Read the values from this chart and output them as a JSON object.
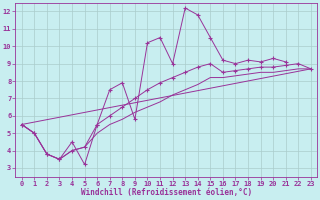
{
  "xlabel": "Windchill (Refroidissement éolien,°C)",
  "bg_color": "#c8eef0",
  "grid_color": "#aacccc",
  "line_color": "#993399",
  "xlim": [
    -0.5,
    23.5
  ],
  "ylim": [
    2.5,
    12.5
  ],
  "xticks": [
    0,
    1,
    2,
    3,
    4,
    5,
    6,
    7,
    8,
    9,
    10,
    11,
    12,
    13,
    14,
    15,
    16,
    17,
    18,
    19,
    20,
    21,
    22,
    23
  ],
  "yticks": [
    3,
    4,
    5,
    6,
    7,
    8,
    9,
    10,
    11,
    12
  ],
  "series1_x": [
    0,
    1,
    2,
    3,
    4,
    5,
    6,
    7,
    8,
    9,
    10,
    11,
    12,
    13,
    14,
    15,
    16,
    17,
    18,
    19,
    20,
    21
  ],
  "series1_y": [
    5.5,
    5.0,
    3.8,
    3.5,
    4.5,
    3.2,
    5.5,
    7.5,
    7.9,
    5.8,
    10.2,
    10.5,
    9.0,
    12.2,
    11.8,
    10.5,
    9.2,
    9.0,
    9.2,
    9.1,
    9.3,
    9.1
  ],
  "series2_x": [
    0,
    1,
    2,
    3,
    4,
    5,
    6,
    7,
    8,
    9,
    10,
    11,
    12,
    13,
    14,
    15,
    16,
    17,
    18,
    19,
    20,
    21,
    22,
    23
  ],
  "series2_y": [
    5.5,
    5.0,
    3.8,
    3.5,
    4.0,
    4.2,
    5.5,
    6.0,
    6.5,
    7.0,
    7.5,
    7.9,
    8.2,
    8.5,
    8.8,
    9.0,
    8.5,
    8.6,
    8.7,
    8.8,
    8.8,
    8.9,
    9.0,
    8.7
  ],
  "series3_x": [
    0,
    23
  ],
  "series3_y": [
    5.5,
    8.7
  ],
  "series4_x": [
    0,
    1,
    2,
    3,
    4,
    5,
    6,
    7,
    8,
    9,
    10,
    11,
    12,
    13,
    14,
    15,
    16,
    17,
    18,
    19,
    20,
    21,
    22,
    23
  ],
  "series4_y": [
    5.5,
    5.0,
    3.8,
    3.5,
    4.0,
    4.2,
    5.0,
    5.5,
    5.8,
    6.2,
    6.5,
    6.8,
    7.2,
    7.5,
    7.8,
    8.2,
    8.2,
    8.3,
    8.4,
    8.5,
    8.5,
    8.6,
    8.7,
    8.7
  ],
  "label_fontsize": 5.5,
  "tick_fontsize": 5.0
}
